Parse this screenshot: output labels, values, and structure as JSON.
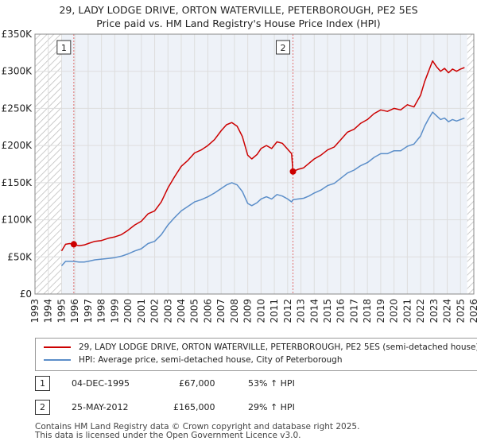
{
  "chart_data": {
    "type": "line",
    "title": "29, LADY LODGE DRIVE, ORTON WATERVILLE, PETERBOROUGH, PE2 5ES",
    "subtitle": "Price paid vs. HM Land Registry's House Price Index (HPI)",
    "xlabel": "",
    "ylabel": "",
    "xlim": [
      1993,
      2026
    ],
    "ylim": [
      0,
      350000
    ],
    "x_ticks": [
      "1993",
      "1994",
      "1995",
      "1996",
      "1997",
      "1998",
      "1999",
      "2000",
      "2001",
      "2002",
      "2003",
      "2004",
      "2005",
      "2006",
      "2007",
      "2008",
      "2009",
      "2010",
      "2011",
      "2012",
      "2013",
      "2014",
      "2015",
      "2016",
      "2017",
      "2018",
      "2019",
      "2020",
      "2021",
      "2022",
      "2023",
      "2024",
      "2025",
      "2026"
    ],
    "y_ticks": [
      {
        "value": 0,
        "label": "£0"
      },
      {
        "value": 50000,
        "label": "£50K"
      },
      {
        "value": 100000,
        "label": "£100K"
      },
      {
        "value": 150000,
        "label": "£150K"
      },
      {
        "value": 200000,
        "label": "£200K"
      },
      {
        "value": 250000,
        "label": "£250K"
      },
      {
        "value": 300000,
        "label": "£300K"
      },
      {
        "value": 350000,
        "label": "£350K"
      }
    ],
    "data_range": [
      1995,
      2025.5
    ],
    "series": [
      {
        "name": "29, LADY LODGE DRIVE, ORTON WATERVILLE, PETERBOROUGH, PE2 5ES (semi-detached house)",
        "color": "#cc0000",
        "x": [
          1995.0,
          1995.3,
          1995.6,
          1995.92,
          1996.3,
          1996.7,
          1997.0,
          1997.5,
          1998.0,
          1998.5,
          1999.0,
          1999.5,
          2000.0,
          2000.5,
          2001.0,
          2001.5,
          2002.0,
          2002.5,
          2003.0,
          2003.5,
          2004.0,
          2004.5,
          2005.0,
          2005.5,
          2006.0,
          2006.5,
          2007.0,
          2007.4,
          2007.8,
          2008.2,
          2008.6,
          2009.0,
          2009.3,
          2009.7,
          2010.0,
          2010.4,
          2010.8,
          2011.2,
          2011.6,
          2012.0,
          2012.3,
          2012.4,
          2012.8,
          2013.2,
          2013.6,
          2014.0,
          2014.5,
          2015.0,
          2015.5,
          2016.0,
          2016.5,
          2017.0,
          2017.5,
          2018.0,
          2018.5,
          2019.0,
          2019.5,
          2020.0,
          2020.5,
          2021.0,
          2021.5,
          2022.0,
          2022.3,
          2022.6,
          2022.9,
          2023.2,
          2023.5,
          2023.8,
          2024.1,
          2024.4,
          2024.7,
          2025.0,
          2025.3
        ],
        "values": [
          58000,
          67000,
          68000,
          67000,
          65000,
          66000,
          68000,
          71000,
          72000,
          75000,
          77000,
          80000,
          86000,
          93000,
          98000,
          108000,
          112000,
          124000,
          143000,
          158000,
          172000,
          180000,
          190000,
          194000,
          200000,
          208000,
          220000,
          228000,
          231000,
          226000,
          212000,
          187000,
          182000,
          188000,
          196000,
          200000,
          196000,
          205000,
          203000,
          195000,
          189000,
          165000,
          168000,
          170000,
          176000,
          182000,
          187000,
          194000,
          198000,
          208000,
          218000,
          222000,
          230000,
          235000,
          243000,
          248000,
          246000,
          250000,
          248000,
          255000,
          252000,
          268000,
          286000,
          300000,
          314000,
          306000,
          300000,
          304000,
          298000,
          303000,
          300000,
          303000,
          305000
        ]
      },
      {
        "name": "HPI: Average price, semi-detached house, City of Peterborough",
        "color": "#5b8ec9",
        "x": [
          1995.0,
          1995.3,
          1995.6,
          1995.92,
          1996.3,
          1996.7,
          1997.0,
          1997.5,
          1998.0,
          1998.5,
          1999.0,
          1999.5,
          2000.0,
          2000.5,
          2001.0,
          2001.5,
          2002.0,
          2002.5,
          2003.0,
          2003.5,
          2004.0,
          2004.5,
          2005.0,
          2005.5,
          2006.0,
          2006.5,
          2007.0,
          2007.4,
          2007.8,
          2008.2,
          2008.6,
          2009.0,
          2009.3,
          2009.7,
          2010.0,
          2010.4,
          2010.8,
          2011.2,
          2011.6,
          2012.0,
          2012.3,
          2012.4,
          2012.8,
          2013.2,
          2013.6,
          2014.0,
          2014.5,
          2015.0,
          2015.5,
          2016.0,
          2016.5,
          2017.0,
          2017.5,
          2018.0,
          2018.5,
          2019.0,
          2019.5,
          2020.0,
          2020.5,
          2021.0,
          2021.5,
          2022.0,
          2022.3,
          2022.6,
          2022.9,
          2023.2,
          2023.5,
          2023.8,
          2024.1,
          2024.4,
          2024.7,
          2025.0,
          2025.3
        ],
        "values": [
          38000,
          44000,
          44000,
          44000,
          43000,
          43000,
          44000,
          46000,
          47000,
          48000,
          49000,
          51000,
          54000,
          58000,
          61000,
          68000,
          71000,
          80000,
          93000,
          103000,
          112000,
          118000,
          124000,
          127000,
          131000,
          136000,
          142000,
          147000,
          150000,
          147000,
          138000,
          122000,
          119000,
          123000,
          128000,
          131000,
          128000,
          134000,
          132000,
          128000,
          124000,
          127000,
          128000,
          129000,
          132000,
          136000,
          140000,
          146000,
          149000,
          156000,
          163000,
          167000,
          173000,
          177000,
          184000,
          189000,
          189000,
          193000,
          193000,
          199000,
          202000,
          213000,
          226000,
          236000,
          245000,
          240000,
          235000,
          237000,
          232000,
          235000,
          233000,
          235000,
          237000
        ]
      }
    ],
    "markers": [
      {
        "label": "1",
        "x": 1995.92,
        "value": 67000
      },
      {
        "label": "2",
        "x": 2012.4,
        "value": 165000
      }
    ]
  },
  "legend": {
    "property_label": "29, LADY LODGE DRIVE, ORTON WATERVILLE, PETERBOROUGH, PE2 5ES (semi-detached house)",
    "hpi_label": "HPI: Average price, semi-detached house, City of Peterborough"
  },
  "transactions": [
    {
      "num": "1",
      "date": "04-DEC-1995",
      "price": "£67,000",
      "hpi": "53% ↑ HPI"
    },
    {
      "num": "2",
      "date": "25-MAY-2012",
      "price": "£165,000",
      "hpi": "29% ↑ HPI"
    }
  ],
  "footer": {
    "line1": "Contains HM Land Registry data © Crown copyright and database right 2025.",
    "line2": "This data is licensed under the Open Government Licence v3.0."
  },
  "colors": {
    "property": "#cc0000",
    "hpi": "#5b8ec9",
    "marker_line": "#e07070",
    "hatch": "#bbbbbb",
    "grid": "#dddddd",
    "plot_bg": "#eef2f8"
  }
}
